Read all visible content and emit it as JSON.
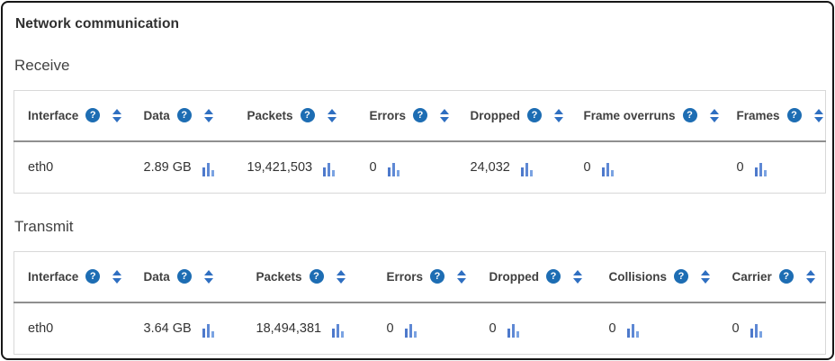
{
  "panel": {
    "title": "Network communication"
  },
  "icons": {
    "help_glyph": "?",
    "help_name": "question-mark-icon",
    "sort_name": "sort-arrows-icon",
    "chart_name": "bar-chart-icon"
  },
  "colors": {
    "accent_blue": "#1d6db3",
    "sort_blue": "#2f6fc1",
    "bar_blue": "#4d79cb"
  },
  "tables": [
    {
      "section": "Receive",
      "columns": [
        "Interface",
        "Data",
        "Packets",
        "Errors",
        "Dropped",
        "Frame overruns",
        "Frames"
      ],
      "rows": [
        {
          "cells": [
            "eth0",
            "2.89 GB",
            "19,421,503",
            "0",
            "24,032",
            "0",
            "0"
          ]
        }
      ]
    },
    {
      "section": "Transmit",
      "columns": [
        "Interface",
        "Data",
        "Packets",
        "Errors",
        "Dropped",
        "Collisions",
        "Carrier"
      ],
      "rows": [
        {
          "cells": [
            "eth0",
            "3.64 GB",
            "18,494,381",
            "0",
            "0",
            "0",
            "0"
          ]
        }
      ]
    }
  ]
}
